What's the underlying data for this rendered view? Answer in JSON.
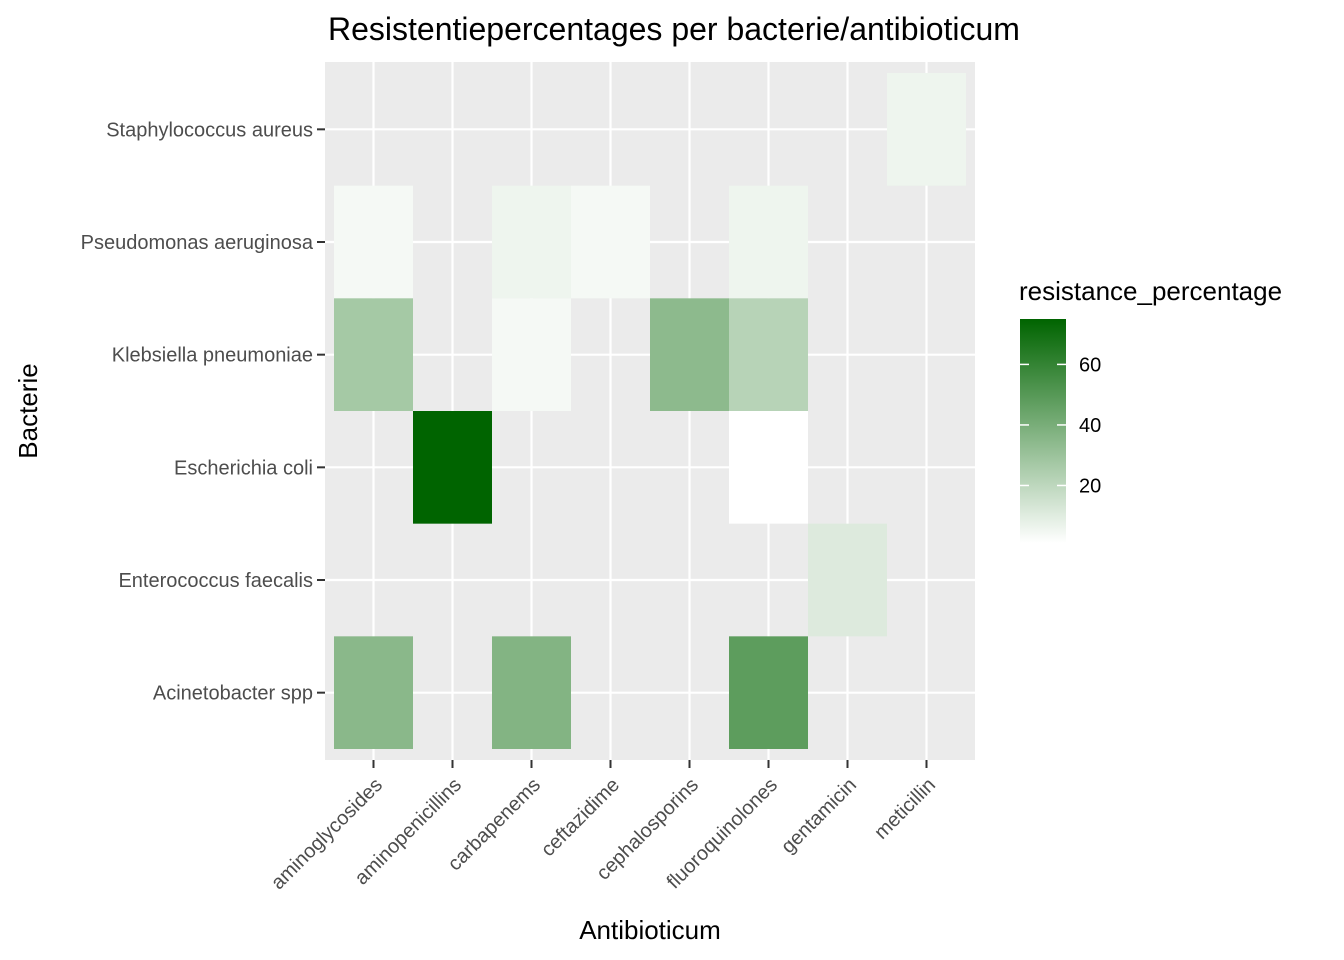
{
  "chart_data": {
    "type": "heatmap",
    "title": "Resistentiepercentages per bacterie/antibioticum",
    "xlabel": "Antibioticum",
    "ylabel": "Bacterie",
    "x_categories": [
      "aminoglycosides",
      "aminopenicillins",
      "carbapenems",
      "ceftazidime",
      "cephalosporins",
      "fluoroquinolones",
      "gentamicin",
      "meticillin"
    ],
    "y_categories": [
      "Acinetobacter spp",
      "Enterococcus faecalis",
      "Escherichia coli",
      "Klebsiella pneumoniae",
      "Pseudomonas aeruginosa",
      "Staphylococcus aureus"
    ],
    "cells": [
      {
        "x": "meticillin",
        "y": "Staphylococcus aureus",
        "value": 6
      },
      {
        "x": "aminoglycosides",
        "y": "Pseudomonas aeruginosa",
        "value": 4
      },
      {
        "x": "carbapenems",
        "y": "Pseudomonas aeruginosa",
        "value": 6
      },
      {
        "x": "ceftazidime",
        "y": "Pseudomonas aeruginosa",
        "value": 4
      },
      {
        "x": "fluoroquinolones",
        "y": "Pseudomonas aeruginosa",
        "value": 6
      },
      {
        "x": "aminoglycosides",
        "y": "Klebsiella pneumoniae",
        "value": 27
      },
      {
        "x": "carbapenems",
        "y": "Klebsiella pneumoniae",
        "value": 4
      },
      {
        "x": "cephalosporins",
        "y": "Klebsiella pneumoniae",
        "value": 34
      },
      {
        "x": "fluoroquinolones",
        "y": "Klebsiella pneumoniae",
        "value": 22
      },
      {
        "x": "aminopenicillins",
        "y": "Escherichia coli",
        "value": 75
      },
      {
        "x": "fluoroquinolones",
        "y": "Escherichia coli",
        "value": 1
      },
      {
        "x": "gentamicin",
        "y": "Enterococcus faecalis",
        "value": 11
      },
      {
        "x": "aminoglycosides",
        "y": "Acinetobacter spp",
        "value": 35
      },
      {
        "x": "carbapenems",
        "y": "Acinetobacter spp",
        "value": 37
      },
      {
        "x": "fluoroquinolones",
        "y": "Acinetobacter spp",
        "value": 48
      }
    ],
    "value_range": [
      1,
      75
    ],
    "legend": {
      "title": "resistance_percentage",
      "position": "right",
      "ticks": [
        20,
        40,
        60
      ],
      "low_color": "#ffffff",
      "high_color": "#006400"
    },
    "panel_background": "#ebebeb",
    "grid": true
  }
}
